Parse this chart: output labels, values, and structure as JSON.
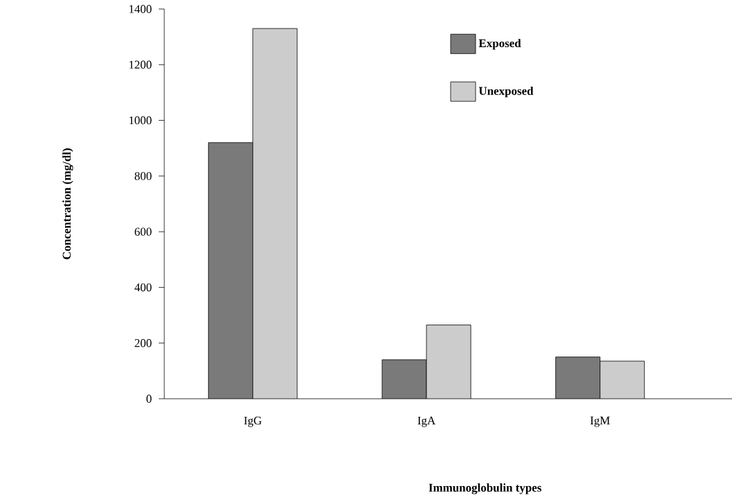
{
  "chart_data": {
    "type": "bar",
    "xlabel": "Immunoglobulin types",
    "ylabel": "Concentration (mg/dl)",
    "categories": [
      "IgG",
      "IgA",
      "IgM"
    ],
    "series": [
      {
        "name": "Exposed",
        "color": "#7a7a7a",
        "values": [
          920,
          140,
          150
        ]
      },
      {
        "name": "Unexposed",
        "color": "#cccccc",
        "values": [
          1330,
          265,
          135
        ]
      }
    ],
    "ylim": [
      0,
      1400
    ],
    "yticks": [
      0,
      200,
      400,
      600,
      800,
      1000,
      1200,
      1400
    ],
    "grid": false,
    "legend": "top right"
  }
}
